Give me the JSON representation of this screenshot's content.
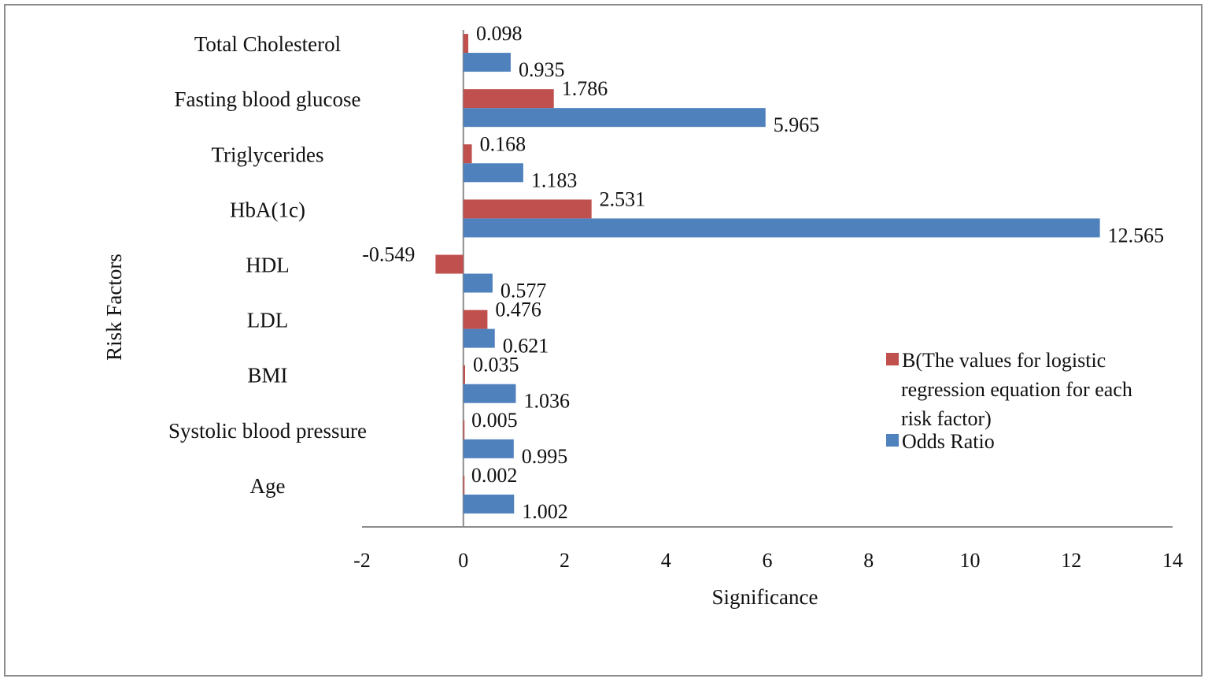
{
  "chart_data": {
    "type": "bar",
    "orientation": "horizontal",
    "title": "",
    "xlabel": "Significance",
    "ylabel": "Risk Factors",
    "xlim": [
      -2,
      14
    ],
    "xticks": [
      -2,
      0,
      2,
      4,
      6,
      8,
      10,
      12,
      14
    ],
    "grid": false,
    "legend_position": "right",
    "categories": [
      "Total Cholesterol",
      "Fasting blood glucose",
      "Triglycerides",
      "HbA(1c)",
      "HDL",
      "LDL",
      "BMI",
      "Systolic blood pressure",
      "Age"
    ],
    "series": [
      {
        "name": "B(The values for logistic regression equation for each risk factor)",
        "legend_lines": [
          "B(The values for logistic",
          "regression equation for each",
          "risk factor)"
        ],
        "color": "#C0504D",
        "values": [
          0.098,
          1.786,
          0.168,
          2.531,
          -0.549,
          0.476,
          0.035,
          0.005,
          0.002
        ],
        "labels": [
          "0.098",
          "1.786",
          "0.168",
          "2.531",
          "-0.549",
          "0.476",
          "0.035",
          "0.005",
          "0.002"
        ]
      },
      {
        "name": "Odds Ratio",
        "legend_lines": [
          "Odds Ratio"
        ],
        "color": "#4F81BD",
        "values": [
          0.935,
          5.965,
          1.183,
          12.565,
          0.577,
          0.621,
          1.036,
          0.995,
          1.002
        ],
        "labels": [
          "0.935",
          "5.965",
          "1.183",
          "12.565",
          "0.577",
          "0.621",
          "1.036",
          "0.995",
          "1.002"
        ]
      }
    ]
  }
}
